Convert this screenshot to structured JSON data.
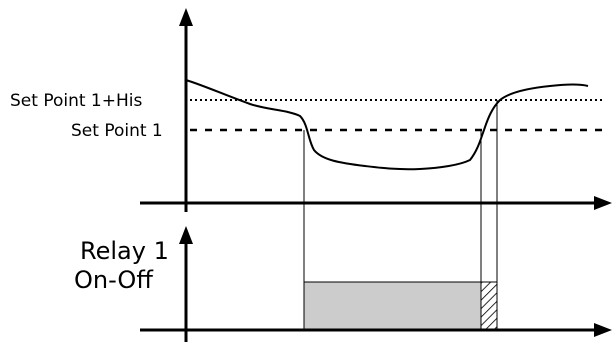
{
  "labels": {
    "setpoint_his": "Set Point 1+His",
    "setpoint": "Set Point 1",
    "relay_line1": "Relay 1",
    "relay_line2": "On-Off"
  },
  "colors": {
    "stroke": "#000000",
    "relay_fill": "#cccccc",
    "background": "#ffffff"
  }
}
